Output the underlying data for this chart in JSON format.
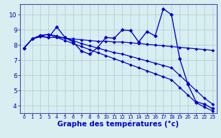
{
  "background_color": "#d8eef0",
  "grid_color": "#b0d0d8",
  "line_color": "#0000cc",
  "xlabel": "Graphe des températures (°c)",
  "xlabel_fontsize": 7.5,
  "ylim": [
    3.5,
    10.7
  ],
  "xlim": [
    -0.5,
    23.5
  ],
  "yticks": [
    4,
    5,
    6,
    7,
    8,
    9,
    10
  ],
  "xticks": [
    0,
    1,
    2,
    3,
    4,
    5,
    6,
    7,
    8,
    9,
    10,
    11,
    12,
    13,
    14,
    15,
    16,
    17,
    18,
    19,
    20,
    21,
    22,
    23
  ],
  "series": [
    {
      "x": [
        0,
        1,
        2,
        3,
        4,
        5,
        6,
        7,
        8,
        9,
        10,
        11,
        12,
        13,
        14,
        15,
        16,
        17,
        18,
        19,
        20,
        21,
        22,
        23
      ],
      "y": [
        7.8,
        8.4,
        8.6,
        8.5,
        9.2,
        8.5,
        8.2,
        7.6,
        7.4,
        7.85,
        8.5,
        8.45,
        9.0,
        8.95,
        8.2,
        8.9,
        8.6,
        10.4,
        10.0,
        7.1,
        5.4,
        4.25,
        4.1,
        3.8
      ],
      "marker": "D",
      "markersize": 2.5,
      "linewidth": 1.0
    },
    {
      "x": [
        0,
        1,
        2,
        3,
        4,
        5,
        6,
        7,
        8,
        9,
        10,
        11,
        12,
        13,
        14,
        15,
        16,
        17,
        18,
        19,
        20,
        21,
        22,
        23
      ],
      "y": [
        7.8,
        8.4,
        8.55,
        8.5,
        8.5,
        8.45,
        8.4,
        8.35,
        8.3,
        8.25,
        8.25,
        8.2,
        8.2,
        8.15,
        8.1,
        8.05,
        8.0,
        7.95,
        7.9,
        7.85,
        7.8,
        7.75,
        7.7,
        7.65
      ],
      "marker": "D",
      "markersize": 2.0,
      "linewidth": 0.9
    },
    {
      "x": [
        0,
        1,
        2,
        3,
        4,
        5,
        6,
        7,
        8,
        9,
        10,
        11,
        12,
        13,
        14,
        15,
        16,
        17,
        18,
        19,
        20,
        21,
        22,
        23
      ],
      "y": [
        7.8,
        8.4,
        8.65,
        8.7,
        8.6,
        8.45,
        8.3,
        8.1,
        7.95,
        7.8,
        7.65,
        7.5,
        7.4,
        7.25,
        7.1,
        6.95,
        6.8,
        6.65,
        6.5,
        6.0,
        5.5,
        5.0,
        4.5,
        4.1
      ],
      "marker": "D",
      "markersize": 2.0,
      "linewidth": 0.9
    },
    {
      "x": [
        0,
        1,
        2,
        3,
        4,
        5,
        6,
        7,
        8,
        9,
        10,
        11,
        12,
        13,
        14,
        15,
        16,
        17,
        18,
        19,
        20,
        21,
        22,
        23
      ],
      "y": [
        7.8,
        8.4,
        8.6,
        8.7,
        8.5,
        8.3,
        8.1,
        7.9,
        7.7,
        7.5,
        7.3,
        7.1,
        6.9,
        6.7,
        6.5,
        6.3,
        6.1,
        5.9,
        5.7,
        5.2,
        4.7,
        4.2,
        3.9,
        3.65
      ],
      "marker": "D",
      "markersize": 2.0,
      "linewidth": 0.9
    }
  ]
}
